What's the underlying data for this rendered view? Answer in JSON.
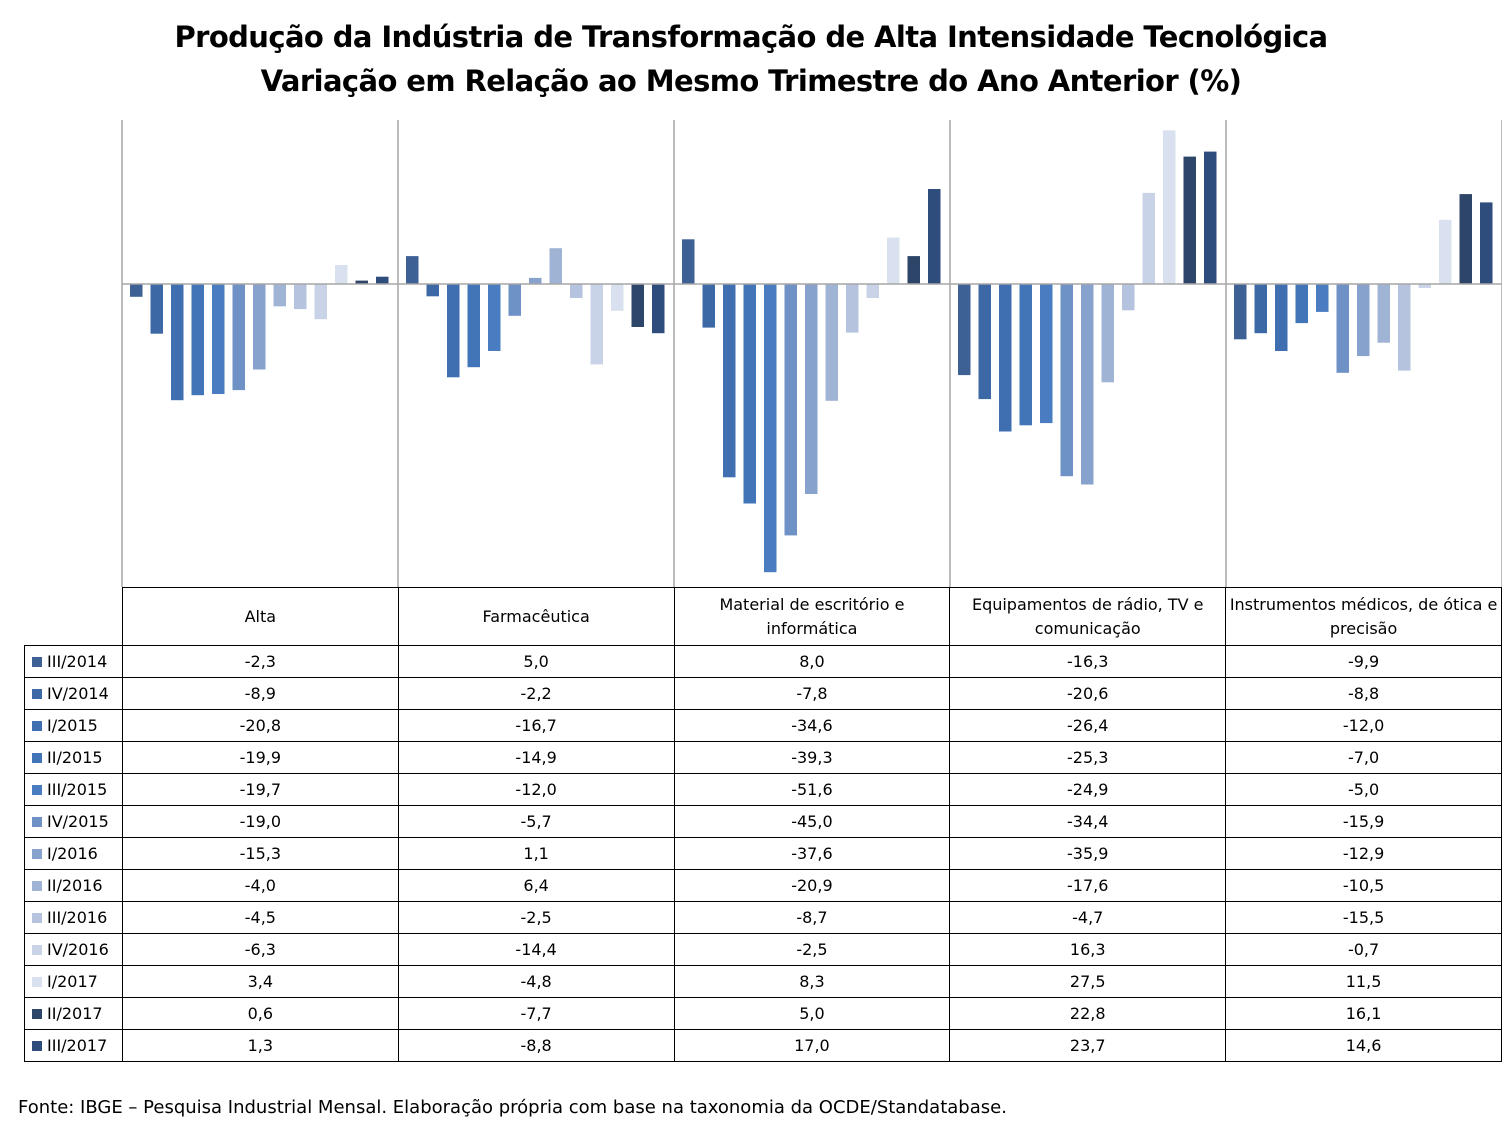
{
  "title_line1": "Produção da Indústria de Transformação de Alta Intensidade Tecnológica",
  "title_line2": "Variação em Relação ao Mesmo Trimestre do Ano Anterior (%)",
  "source": "Fonte: IBGE – Pesquisa Industrial Mensal. Elaboração própria com base na taxonomia da OCDE/Standatabase.",
  "chart_data": {
    "type": "bar",
    "title": "Produção da Indústria de Transformação de Alta Intensidade Tecnológica - Variação em Relação ao Mesmo Trimestre do Ano Anterior (%)",
    "categories": [
      "Alta",
      "Farmacêutica",
      "Material de escritório e informática",
      "Equipamentos de rádio, TV e comunicação",
      "Instrumentos médicos, de ótica e precisão"
    ],
    "ylim": [
      -52,
      29
    ],
    "grid": false,
    "legend": "data-table",
    "series": [
      {
        "name": "III/2014",
        "color": "#3d6095",
        "values": [
          -2.3,
          5.0,
          8.0,
          -16.3,
          -9.9
        ],
        "labels": [
          "-2,3",
          "5,0",
          "8,0",
          "-16,3",
          "-9,9"
        ]
      },
      {
        "name": "IV/2014",
        "color": "#3c68a5",
        "values": [
          -8.9,
          -2.2,
          -7.8,
          -20.6,
          -8.8
        ],
        "labels": [
          "-8,9",
          "-2,2",
          "-7,8",
          "-20,6",
          "-8,8"
        ]
      },
      {
        "name": "I/2015",
        "color": "#3f6fb0",
        "values": [
          -20.8,
          -16.7,
          -34.6,
          -26.4,
          -12.0
        ],
        "labels": [
          "-20,8",
          "-16,7",
          "-34,6",
          "-26,4",
          "-12,0"
        ]
      },
      {
        "name": "II/2015",
        "color": "#4274b8",
        "values": [
          -19.9,
          -14.9,
          -39.3,
          -25.3,
          -7.0
        ],
        "labels": [
          "-19,9",
          "-14,9",
          "-39,3",
          "-25,3",
          "-7,0"
        ]
      },
      {
        "name": "III/2015",
        "color": "#4a7cc1",
        "values": [
          -19.7,
          -12.0,
          -51.6,
          -24.9,
          -5.0
        ],
        "labels": [
          "-19,7",
          "-12,0",
          "-51,6",
          "-24,9",
          "-5,0"
        ]
      },
      {
        "name": "IV/2015",
        "color": "#6e91c6",
        "values": [
          -19.0,
          -5.7,
          -45.0,
          -34.4,
          -15.9
        ],
        "labels": [
          "-19,0",
          "-5,7",
          "-45,0",
          "-34,4",
          "-15,9"
        ]
      },
      {
        "name": "I/2016",
        "color": "#87a2cd",
        "values": [
          -15.3,
          1.1,
          -37.6,
          -35.9,
          -12.9
        ],
        "labels": [
          "-15,3",
          "1,1",
          "-37,6",
          "-35,9",
          "-12,9"
        ]
      },
      {
        "name": "II/2016",
        "color": "#9fb3d5",
        "values": [
          -4.0,
          6.4,
          -20.9,
          -17.6,
          -10.5
        ],
        "labels": [
          "-4,0",
          "6,4",
          "-20,9",
          "-17,6",
          "-10,5"
        ]
      },
      {
        "name": "III/2016",
        "color": "#b5c3de",
        "values": [
          -4.5,
          -2.5,
          -8.7,
          -4.7,
          -15.5
        ],
        "labels": [
          "-4,5",
          "-2,5",
          "-8,7",
          "-4,7",
          "-15,5"
        ]
      },
      {
        "name": "IV/2016",
        "color": "#c9d3e8",
        "values": [
          -6.3,
          -14.4,
          -2.5,
          16.3,
          -0.7
        ],
        "labels": [
          "-6,3",
          "-14,4",
          "-2,5",
          "16,3",
          "-0,7"
        ]
      },
      {
        "name": "I/2017",
        "color": "#d9e0ef",
        "values": [
          3.4,
          -4.8,
          8.3,
          27.5,
          11.5
        ],
        "labels": [
          "3,4",
          "-4,8",
          "8,3",
          "27,5",
          "11,5"
        ]
      },
      {
        "name": "II/2017",
        "color": "#2d4569",
        "values": [
          0.6,
          -7.7,
          5.0,
          22.8,
          16.1
        ],
        "labels": [
          "0,6",
          "-7,7",
          "5,0",
          "22,8",
          "16,1"
        ]
      },
      {
        "name": "III/2017",
        "color": "#2f4d7c",
        "values": [
          1.3,
          -8.8,
          17.0,
          23.7,
          14.6
        ],
        "labels": [
          "1,3",
          "-8,8",
          "17,0",
          "23,7",
          "14,6"
        ]
      }
    ]
  }
}
